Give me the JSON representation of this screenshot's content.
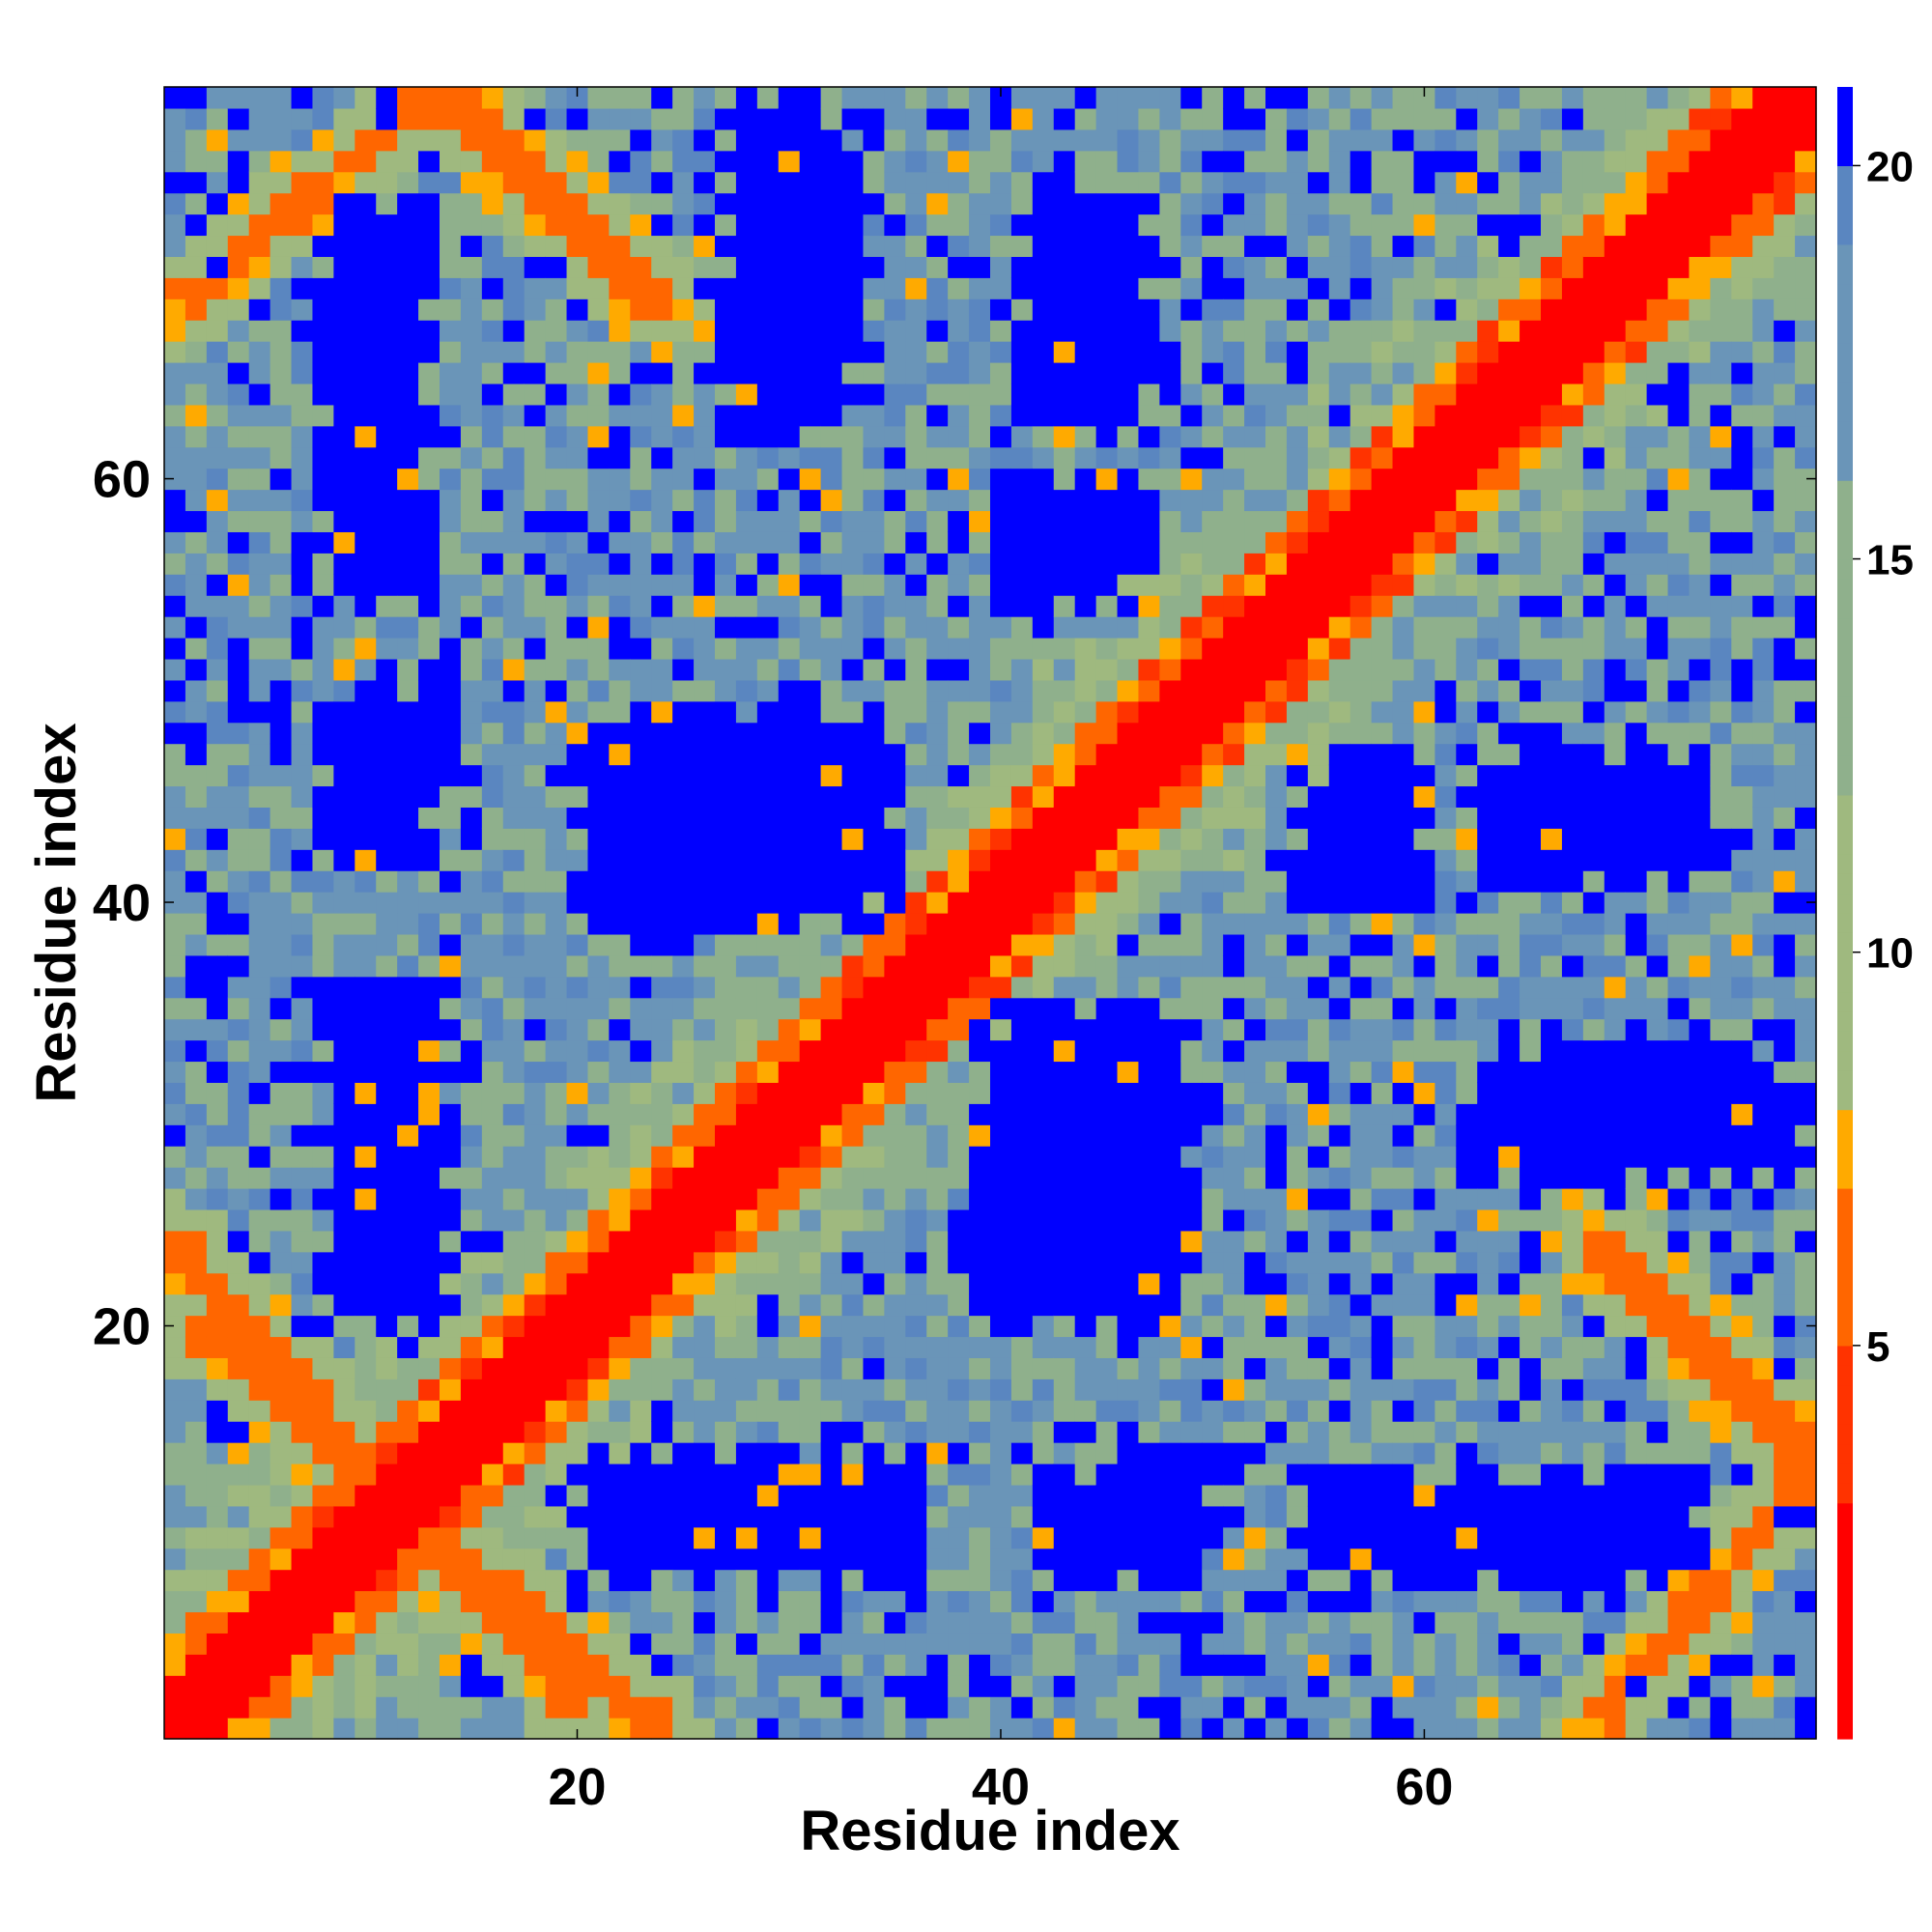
{
  "chart_data": {
    "type": "heatmap",
    "title": "",
    "xlabel": "Residue index",
    "ylabel": "Residue index",
    "n_residues": 78,
    "xlim": [
      0.5,
      78.5
    ],
    "ylim": [
      0.5,
      78.5
    ],
    "x_ticks": [
      20,
      40,
      60
    ],
    "y_ticks": [
      20,
      40,
      60
    ],
    "x_tick_labels": [
      "20",
      "40",
      "60"
    ],
    "y_tick_labels": [
      "20",
      "40",
      "60"
    ],
    "colorbar": {
      "range": [
        0,
        21
      ],
      "ticks": [
        5,
        10,
        15,
        20
      ],
      "tick_labels": [
        "5",
        "10",
        "15",
        "20"
      ],
      "saturation_value": 20,
      "colors": [
        {
          "value": 0,
          "color": "#ff0000"
        },
        {
          "value": 3,
          "color": "#ff3300"
        },
        {
          "value": 5,
          "color": "#ff6600"
        },
        {
          "value": 7,
          "color": "#ffaa00"
        },
        {
          "value": 8,
          "color": "#9fb97f"
        },
        {
          "value": 12,
          "color": "#8fb08c"
        },
        {
          "value": 16,
          "color": "#6a95b8"
        },
        {
          "value": 19,
          "color": "#5a86c0"
        },
        {
          "value": 20,
          "color": "#0000ff"
        }
      ]
    },
    "description_of_values": "Pairwise residue distance map (symmetric). Main diagonal and anti-diagonal bands near 0-7 (red/orange); large blocks saturated above 20 (blue).",
    "diagonal_band": {
      "width": 2,
      "value": 1
    },
    "anti_diagonal_bands": [
      {
        "from": [
          1,
          24
        ],
        "to": [
          20,
          2
        ],
        "value": 6
      },
      {
        "from": [
          14,
          78
        ],
        "to": [
          24,
          68
        ],
        "value": 6
      },
      {
        "from": [
          68,
          1
        ],
        "to": [
          78,
          13
        ],
        "value": 6
      }
    ],
    "far_blocks": [
      {
        "x": [
          9,
          14
        ],
        "y": [
          20,
          34
        ],
        "value": 22
      },
      {
        "x": [
          10,
          14
        ],
        "y": [
          44,
          50
        ],
        "value": 22
      },
      {
        "x": [
          9,
          13
        ],
        "y": [
          54,
          62
        ],
        "value": 22
      },
      {
        "x": [
          9,
          14
        ],
        "y": [
          70,
          73
        ],
        "value": 22
      },
      {
        "x": [
          20,
          36
        ],
        "y": [
          8,
          13
        ],
        "value": 22
      },
      {
        "x": [
          21,
          35
        ],
        "y": [
          40,
          49
        ],
        "value": 22
      },
      {
        "x": [
          27,
          33
        ],
        "y": [
          64,
          75
        ],
        "value": 22
      },
      {
        "x": [
          39,
          48
        ],
        "y": [
          20,
          34
        ],
        "value": 22
      },
      {
        "x": [
          41,
          47
        ],
        "y": [
          55,
          59
        ],
        "value": 22
      },
      {
        "x": [
          41,
          47
        ],
        "y": [
          62,
          74
        ],
        "value": 22
      },
      {
        "x": [
          42,
          49
        ],
        "y": [
          8,
          13
        ],
        "value": 22
      },
      {
        "x": [
          54,
          60
        ],
        "y": [
          40,
          46
        ],
        "value": 22
      },
      {
        "x": [
          63,
          72
        ],
        "y": [
          41,
          46
        ],
        "value": 22
      },
      {
        "x": [
          54,
          72
        ],
        "y": [
          8,
          13
        ],
        "value": 22
      },
      {
        "x": [
          62,
          78
        ],
        "y": [
          27,
          32
        ],
        "value": 22
      }
    ]
  }
}
